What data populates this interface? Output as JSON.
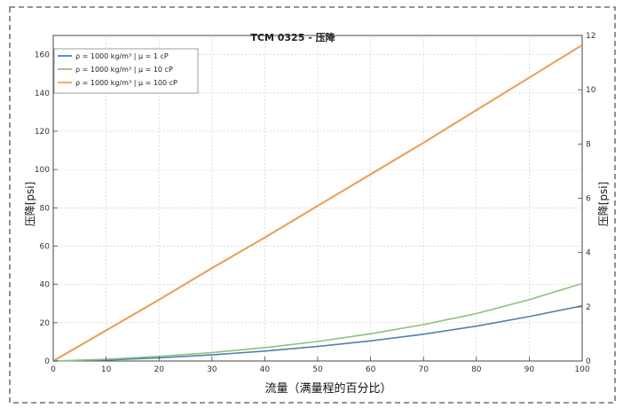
{
  "chart_data": {
    "type": "line",
    "title": "TCM 0325 - 压降",
    "xlabel": "流量（满量程的百分比）",
    "ylabel_left": "压降[psi]",
    "ylabel_right": "压降[psi]",
    "xlim": [
      0,
      100
    ],
    "ylim_left": [
      0,
      170
    ],
    "ylim_right": [
      0,
      12
    ],
    "x_ticks": [
      0,
      10,
      20,
      30,
      40,
      50,
      60,
      70,
      80,
      90,
      100
    ],
    "y_ticks_left": [
      0,
      20,
      40,
      60,
      80,
      100,
      120,
      140,
      160
    ],
    "y_ticks_right": [
      0,
      2,
      4,
      6,
      8,
      10,
      12
    ],
    "grid": true,
    "legend_position": "top-left",
    "series": [
      {
        "name": "ρ = 1000 kg/m³ | μ = 1 cP",
        "color": "#4f7fb0",
        "x": [
          0,
          10,
          20,
          30,
          40,
          50,
          60,
          70,
          80,
          90,
          100
        ],
        "y": [
          0,
          0.5,
          1.6,
          3.2,
          5.2,
          7.6,
          10.5,
          14.0,
          18.2,
          23.2,
          28.8
        ]
      },
      {
        "name": "ρ = 1000 kg/m³ | μ = 10 cP",
        "color": "#8cc17a",
        "x": [
          0,
          10,
          20,
          30,
          40,
          50,
          60,
          70,
          80,
          90,
          100
        ],
        "y": [
          0,
          0.9,
          2.4,
          4.4,
          7.0,
          10.2,
          14.2,
          19.0,
          24.8,
          32.0,
          40.5
        ]
      },
      {
        "name": "ρ = 1000 kg/m³ | μ = 100 cP",
        "color": "#e8a45f",
        "x": [
          0,
          10,
          20,
          30,
          40,
          50,
          60,
          70,
          80,
          90,
          100
        ],
        "y": [
          0,
          16.0,
          32.0,
          48.5,
          64.5,
          81.0,
          97.5,
          114.0,
          131.0,
          148.0,
          165.0
        ]
      }
    ]
  }
}
